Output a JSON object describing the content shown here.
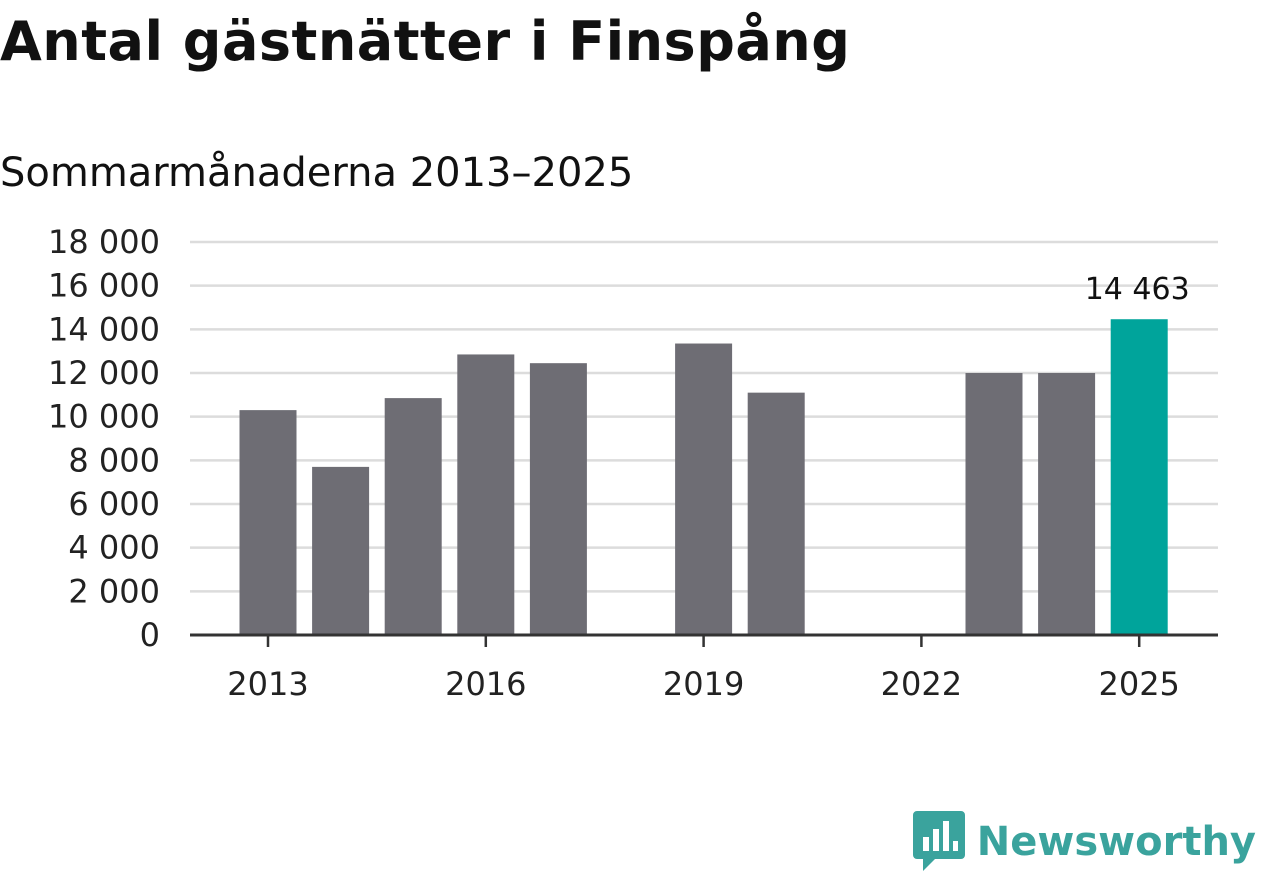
{
  "title": "Antal gästnätter i Finspång",
  "subtitle": "Sommarmånaderna 2013–2025",
  "brand": {
    "name": "Newsworthy",
    "color": "#3aa39d"
  },
  "colors": {
    "bar": "#6e6d74",
    "highlight": "#00a49b",
    "grid": "#dcdcdc",
    "axis": "#333333"
  },
  "chart_data": {
    "type": "bar",
    "categories": [
      2013,
      2014,
      2015,
      2016,
      2017,
      2018,
      2019,
      2020,
      2021,
      2022,
      2023,
      2024,
      2025
    ],
    "values": [
      10300,
      7700,
      10850,
      12850,
      12450,
      null,
      13350,
      11100,
      null,
      null,
      12000,
      12000,
      14463
    ],
    "x_tick_labels": [
      "2013",
      "2016",
      "2019",
      "2022",
      "2025"
    ],
    "y_ticks": [
      0,
      2000,
      4000,
      6000,
      8000,
      10000,
      12000,
      14000,
      16000,
      18000
    ],
    "y_tick_labels": [
      "0",
      "2 000",
      "4 000",
      "6 000",
      "8 000",
      "10 000",
      "12 000",
      "14 000",
      "16 000",
      "18 000"
    ],
    "ylim": [
      0,
      18000
    ],
    "highlight_index": 12,
    "data_label": "14 463",
    "grid": true
  }
}
